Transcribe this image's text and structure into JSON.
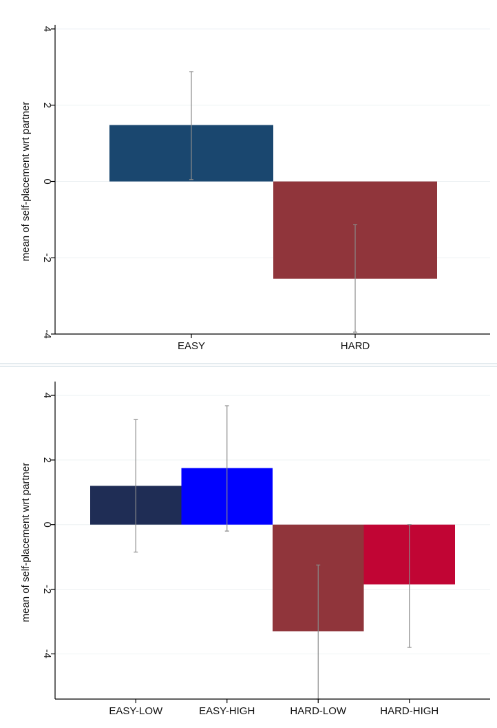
{
  "colors": {
    "gridline": "#eef2f4",
    "axis": "#000000",
    "errorbar": "#8a8a8a",
    "panel_border": "#e4ebef"
  },
  "chart_data": [
    {
      "type": "bar",
      "ylabel": "mean of self-placement wrt partner",
      "ylim": [
        -4,
        4
      ],
      "yticks": [
        4,
        2,
        0,
        -2,
        -4
      ],
      "grid": true,
      "categories": [
        "EASY",
        "HARD"
      ],
      "values": [
        1.48,
        -2.55
      ],
      "error_low": [
        0.05,
        -3.95
      ],
      "error_high": [
        2.88,
        -1.13
      ],
      "bar_colors": [
        "#1a476f",
        "#90353b"
      ]
    },
    {
      "type": "bar",
      "ylabel": "mean of self-placement wrt partner",
      "ylim": [
        -5.4,
        4.3
      ],
      "yticks": [
        4,
        2,
        0,
        -2,
        -4
      ],
      "grid": true,
      "categories": [
        "EASY-LOW",
        "EASY-HIGH",
        "HARD-LOW",
        "HARD-HIGH"
      ],
      "values": [
        1.2,
        1.75,
        -3.3,
        -1.85
      ],
      "error_low": [
        -0.85,
        -0.2,
        -5.4,
        -3.8
      ],
      "error_high": [
        3.25,
        3.68,
        -1.25,
        0.0
      ],
      "bar_colors": [
        "#1f2d55",
        "#0000ff",
        "#90353b",
        "#c10534"
      ]
    }
  ]
}
